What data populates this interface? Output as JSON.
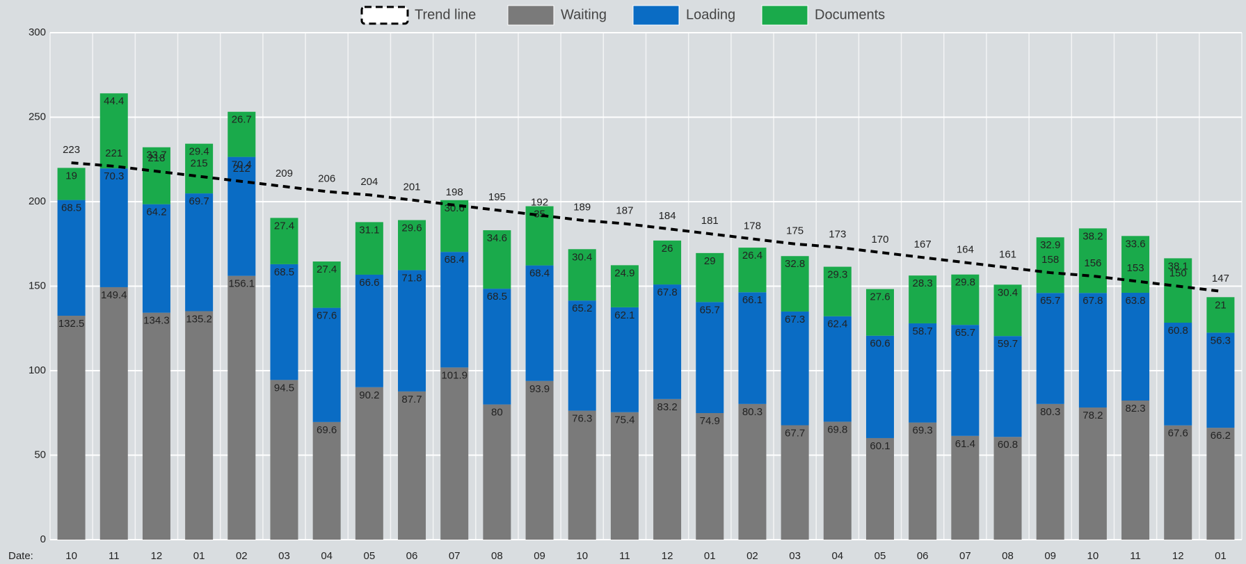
{
  "chart_data": {
    "type": "bar",
    "stacked": true,
    "grid": true,
    "legend": "top",
    "x_label": "Date:",
    "categories": [
      "10",
      "11",
      "12",
      "01",
      "02",
      "03",
      "04",
      "05",
      "06",
      "07",
      "08",
      "09",
      "10",
      "11",
      "12",
      "01",
      "02",
      "03",
      "04",
      "05",
      "06",
      "07",
      "08",
      "09",
      "10",
      "11",
      "12",
      "01"
    ],
    "ylim": [
      0,
      300
    ],
    "yticks": [
      0,
      50,
      100,
      150,
      200,
      250,
      300
    ],
    "series": [
      {
        "name": "Waiting",
        "color": "#7a7a7a",
        "values": [
          132.5,
          149.4,
          134.3,
          135.2,
          156.1,
          94.5,
          69.6,
          90.2,
          87.7,
          101.9,
          80,
          93.9,
          76.3,
          75.4,
          83.2,
          74.9,
          80.3,
          67.7,
          69.8,
          60.1,
          69.3,
          61.4,
          60.8,
          80.3,
          78.2,
          82.3,
          67.6,
          66.2
        ]
      },
      {
        "name": "Loading",
        "color": "#0a6cc4",
        "values": [
          68.5,
          70.3,
          64.2,
          69.7,
          70.4,
          68.5,
          67.6,
          66.6,
          71.8,
          68.4,
          68.5,
          68.4,
          65.2,
          62.1,
          67.8,
          65.7,
          66.1,
          67.3,
          62.4,
          60.6,
          58.7,
          65.7,
          59.7,
          65.7,
          67.8,
          63.8,
          60.8,
          56.3
        ]
      },
      {
        "name": "Documents",
        "color": "#1aaa4b",
        "values": [
          19,
          44.4,
          33.7,
          29.4,
          26.7,
          27.4,
          27.4,
          31.1,
          29.6,
          30.6,
          34.6,
          35,
          30.4,
          24.9,
          26,
          29,
          26.4,
          32.8,
          29.3,
          27.6,
          28.3,
          29.8,
          30.4,
          32.9,
          38.2,
          33.6,
          38.1,
          21
        ]
      }
    ],
    "trend": {
      "name": "Trend line",
      "type": "line",
      "color": "#000000",
      "dashed": true,
      "values": [
        223,
        221,
        218,
        215,
        212,
        209,
        206,
        204,
        201,
        198,
        195,
        192,
        189,
        187,
        184,
        181,
        178,
        175,
        173,
        170,
        167,
        164,
        161,
        158,
        156,
        153,
        150,
        147
      ]
    }
  }
}
